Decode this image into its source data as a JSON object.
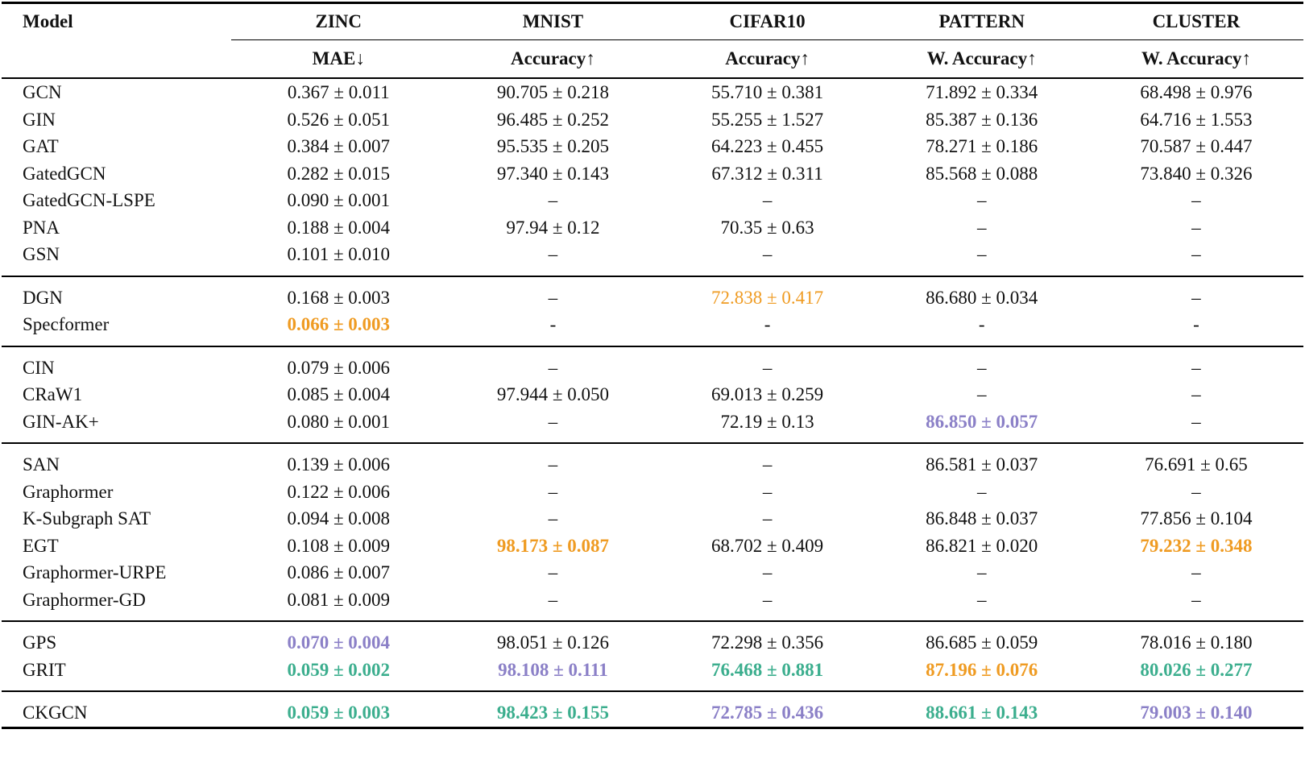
{
  "table": {
    "colors": {
      "orange": "#ef9b22",
      "teal": "#3cae8e",
      "purple": "#8b80c7",
      "black": "#111111"
    },
    "header": {
      "model_label": "Model",
      "datasets": [
        "ZINC",
        "MNIST",
        "CIFAR10",
        "PATTERN",
        "CLUSTER"
      ],
      "metrics": [
        "MAE↓",
        "Accuracy↑",
        "Accuracy↑",
        "W. Accuracy↑",
        "W. Accuracy↑"
      ]
    },
    "groups": [
      {
        "rows": [
          {
            "model": "GCN",
            "cells": [
              {
                "text": "0.367 ± 0.011"
              },
              {
                "text": "90.705 ± 0.218"
              },
              {
                "text": "55.710 ± 0.381"
              },
              {
                "text": "71.892 ± 0.334"
              },
              {
                "text": "68.498 ± 0.976"
              }
            ]
          },
          {
            "model": "GIN",
            "cells": [
              {
                "text": "0.526 ± 0.051"
              },
              {
                "text": "96.485 ± 0.252"
              },
              {
                "text": "55.255 ± 1.527"
              },
              {
                "text": "85.387 ± 0.136"
              },
              {
                "text": "64.716 ± 1.553"
              }
            ]
          },
          {
            "model": "GAT",
            "cells": [
              {
                "text": "0.384 ± 0.007"
              },
              {
                "text": "95.535 ± 0.205"
              },
              {
                "text": "64.223 ± 0.455"
              },
              {
                "text": "78.271 ± 0.186"
              },
              {
                "text": "70.587 ± 0.447"
              }
            ]
          },
          {
            "model": "GatedGCN",
            "cells": [
              {
                "text": "0.282 ± 0.015"
              },
              {
                "text": "97.340 ± 0.143"
              },
              {
                "text": "67.312 ± 0.311"
              },
              {
                "text": "85.568 ± 0.088"
              },
              {
                "text": "73.840 ± 0.326"
              }
            ]
          },
          {
            "model": "GatedGCN-LSPE",
            "cells": [
              {
                "text": "0.090 ± 0.001"
              },
              {
                "text": "–"
              },
              {
                "text": "–"
              },
              {
                "text": "–"
              },
              {
                "text": "–"
              }
            ]
          },
          {
            "model": "PNA",
            "cells": [
              {
                "text": "0.188 ± 0.004"
              },
              {
                "text": "97.94 ± 0.12"
              },
              {
                "text": "70.35 ± 0.63"
              },
              {
                "text": "–"
              },
              {
                "text": "–"
              }
            ]
          },
          {
            "model": "GSN",
            "cells": [
              {
                "text": "0.101 ± 0.010"
              },
              {
                "text": "–"
              },
              {
                "text": "–"
              },
              {
                "text": "–"
              },
              {
                "text": "–"
              }
            ]
          }
        ]
      },
      {
        "rows": [
          {
            "model": "DGN",
            "cells": [
              {
                "text": "0.168 ± 0.003"
              },
              {
                "text": "–"
              },
              {
                "text": "72.838 ± 0.417",
                "color": "orange"
              },
              {
                "text": "86.680 ± 0.034"
              },
              {
                "text": "–"
              }
            ]
          },
          {
            "model": "Specformer",
            "cells": [
              {
                "text": "0.066 ± 0.003",
                "color": "orange",
                "bold": true
              },
              {
                "text": "-"
              },
              {
                "text": "-"
              },
              {
                "text": "-"
              },
              {
                "text": "-"
              }
            ]
          }
        ]
      },
      {
        "rows": [
          {
            "model": "CIN",
            "cells": [
              {
                "text": "0.079 ± 0.006"
              },
              {
                "text": "–"
              },
              {
                "text": "–"
              },
              {
                "text": "–"
              },
              {
                "text": "–"
              }
            ]
          },
          {
            "model": "CRaW1",
            "cells": [
              {
                "text": "0.085 ± 0.004"
              },
              {
                "text": "97.944 ± 0.050"
              },
              {
                "text": "69.013 ± 0.259"
              },
              {
                "text": "–"
              },
              {
                "text": "–"
              }
            ]
          },
          {
            "model": "GIN-AK+",
            "cells": [
              {
                "text": "0.080 ± 0.001"
              },
              {
                "text": "–"
              },
              {
                "text": "72.19 ± 0.13"
              },
              {
                "text": "86.850 ± 0.057",
                "color": "purple",
                "bold": true
              },
              {
                "text": "–"
              }
            ]
          }
        ]
      },
      {
        "rows": [
          {
            "model": "SAN",
            "cells": [
              {
                "text": "0.139 ± 0.006"
              },
              {
                "text": "–"
              },
              {
                "text": "–"
              },
              {
                "text": "86.581 ± 0.037"
              },
              {
                "text": "76.691 ± 0.65"
              }
            ]
          },
          {
            "model": "Graphormer",
            "cells": [
              {
                "text": "0.122 ± 0.006"
              },
              {
                "text": "–"
              },
              {
                "text": "–"
              },
              {
                "text": "–"
              },
              {
                "text": "–"
              }
            ]
          },
          {
            "model": "K-Subgraph SAT",
            "cells": [
              {
                "text": "0.094 ± 0.008"
              },
              {
                "text": "–"
              },
              {
                "text": "–"
              },
              {
                "text": "86.848 ± 0.037"
              },
              {
                "text": "77.856 ± 0.104"
              }
            ]
          },
          {
            "model": "EGT",
            "cells": [
              {
                "text": "0.108 ± 0.009"
              },
              {
                "text": "98.173 ± 0.087",
                "color": "orange",
                "bold": true
              },
              {
                "text": "68.702 ± 0.409"
              },
              {
                "text": "86.821 ± 0.020"
              },
              {
                "text": "79.232 ± 0.348",
                "color": "orange",
                "bold": true
              }
            ]
          },
          {
            "model": "Graphormer-URPE",
            "cells": [
              {
                "text": "0.086 ± 0.007"
              },
              {
                "text": "–"
              },
              {
                "text": "–"
              },
              {
                "text": "–"
              },
              {
                "text": "–"
              }
            ]
          },
          {
            "model": "Graphormer-GD",
            "cells": [
              {
                "text": "0.081 ± 0.009"
              },
              {
                "text": "–"
              },
              {
                "text": "–"
              },
              {
                "text": "–"
              },
              {
                "text": "–"
              }
            ]
          }
        ]
      },
      {
        "rows": [
          {
            "model": "GPS",
            "cells": [
              {
                "text": "0.070 ± 0.004",
                "color": "purple",
                "bold": true
              },
              {
                "text": "98.051 ± 0.126"
              },
              {
                "text": "72.298 ± 0.356"
              },
              {
                "text": "86.685 ± 0.059"
              },
              {
                "text": "78.016 ± 0.180"
              }
            ]
          },
          {
            "model": "GRIT",
            "cells": [
              {
                "text": "0.059 ± 0.002",
                "color": "teal",
                "bold": true
              },
              {
                "text": "98.108 ± 0.111",
                "color": "purple",
                "bold": true
              },
              {
                "text": "76.468 ± 0.881",
                "color": "teal",
                "bold": true
              },
              {
                "text": "87.196 ± 0.076",
                "color": "orange",
                "bold": true
              },
              {
                "text": "80.026 ± 0.277",
                "color": "teal",
                "bold": true
              }
            ]
          }
        ]
      },
      {
        "rows": [
          {
            "model": "CKGCN",
            "cells": [
              {
                "text": "0.059 ± 0.003",
                "color": "teal",
                "bold": true
              },
              {
                "text": "98.423 ± 0.155",
                "color": "teal",
                "bold": true
              },
              {
                "text": "72.785 ± 0.436",
                "color": "purple",
                "bold": true
              },
              {
                "text": "88.661 ± 0.143",
                "color": "teal",
                "bold": true
              },
              {
                "text": "79.003 ± 0.140",
                "color": "purple",
                "bold": true
              }
            ]
          }
        ]
      }
    ]
  }
}
